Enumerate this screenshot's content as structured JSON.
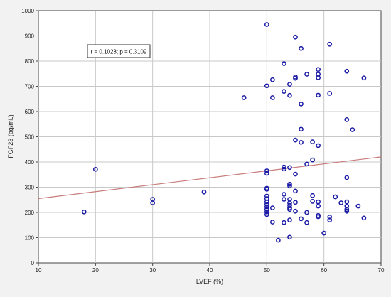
{
  "chart_data": {
    "type": "scatter",
    "title": "",
    "xlabel": "LVEF (%)",
    "ylabel": "FGF23 (pg/mL)",
    "xlim": [
      10,
      70
    ],
    "ylim": [
      0,
      1000
    ],
    "xticks": [
      10,
      20,
      30,
      40,
      50,
      60,
      70
    ],
    "yticks": [
      0,
      100,
      200,
      300,
      400,
      500,
      600,
      700,
      800,
      900,
      1000
    ],
    "grid": true,
    "annotation": "r = 0.1023; p = 0.3109",
    "regression": {
      "x": [
        10,
        70
      ],
      "y": [
        255,
        420
      ]
    },
    "colors": {
      "points": "#1a1aa6",
      "line": "#c77b7b",
      "grid": "#c8c8c8",
      "plot_bg": "#ffffff"
    },
    "points": [
      [
        18,
        202
      ],
      [
        20,
        371
      ],
      [
        30,
        252
      ],
      [
        30,
        238
      ],
      [
        39,
        281
      ],
      [
        46,
        655
      ],
      [
        50,
        945
      ],
      [
        50,
        702
      ],
      [
        50,
        365
      ],
      [
        50,
        355
      ],
      [
        50,
        296
      ],
      [
        50,
        292
      ],
      [
        50,
        265
      ],
      [
        50,
        255
      ],
      [
        50,
        242
      ],
      [
        50,
        232
      ],
      [
        50,
        222
      ],
      [
        50,
        212
      ],
      [
        50,
        202
      ],
      [
        50,
        192
      ],
      [
        51,
        726
      ],
      [
        51,
        655
      ],
      [
        51,
        218
      ],
      [
        51,
        162
      ],
      [
        52,
        90
      ],
      [
        53,
        790
      ],
      [
        53,
        680
      ],
      [
        53,
        380
      ],
      [
        53,
        372
      ],
      [
        53,
        272
      ],
      [
        53,
        252
      ],
      [
        53,
        160
      ],
      [
        54,
        708
      ],
      [
        54,
        664
      ],
      [
        54,
        378
      ],
      [
        54,
        312
      ],
      [
        54,
        305
      ],
      [
        54,
        252
      ],
      [
        54,
        238
      ],
      [
        54,
        228
      ],
      [
        54,
        218
      ],
      [
        54,
        212
      ],
      [
        54,
        170
      ],
      [
        54,
        102
      ],
      [
        55,
        895
      ],
      [
        55,
        737
      ],
      [
        55,
        732
      ],
      [
        55,
        487
      ],
      [
        55,
        352
      ],
      [
        55,
        285
      ],
      [
        55,
        240
      ],
      [
        55,
        205
      ],
      [
        56,
        850
      ],
      [
        56,
        630
      ],
      [
        56,
        530
      ],
      [
        56,
        478
      ],
      [
        56,
        175
      ],
      [
        57,
        748
      ],
      [
        57,
        392
      ],
      [
        57,
        200
      ],
      [
        57,
        160
      ],
      [
        58,
        480
      ],
      [
        58,
        408
      ],
      [
        58,
        267
      ],
      [
        58,
        244
      ],
      [
        59,
        767
      ],
      [
        59,
        748
      ],
      [
        59,
        734
      ],
      [
        59,
        665
      ],
      [
        59,
        465
      ],
      [
        59,
        242
      ],
      [
        59,
        225
      ],
      [
        59,
        188
      ],
      [
        59,
        183
      ],
      [
        60,
        118
      ],
      [
        61,
        867
      ],
      [
        61,
        672
      ],
      [
        61,
        182
      ],
      [
        61,
        170
      ],
      [
        62,
        262
      ],
      [
        63,
        238
      ],
      [
        64,
        760
      ],
      [
        64,
        568
      ],
      [
        64,
        338
      ],
      [
        64,
        242
      ],
      [
        64,
        225
      ],
      [
        64,
        212
      ],
      [
        64,
        205
      ],
      [
        65,
        528
      ],
      [
        66,
        225
      ],
      [
        67,
        733
      ],
      [
        67,
        178
      ]
    ]
  }
}
